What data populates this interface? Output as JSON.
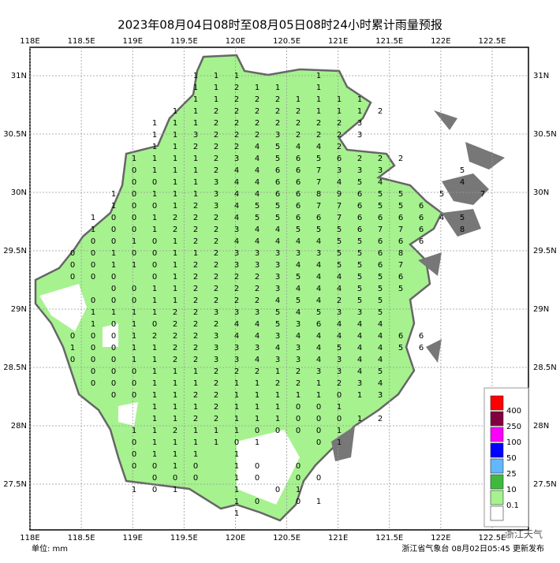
{
  "title": "2023年08月04日08时至08月05日08时24小时累计雨量预报",
  "xticks": [
    {
      "value": 118,
      "label": "118E"
    },
    {
      "value": 118.5,
      "label": "118.5E"
    },
    {
      "value": 119,
      "label": "119E"
    },
    {
      "value": 119.5,
      "label": "119.5E"
    },
    {
      "value": 120,
      "label": "120E"
    },
    {
      "value": 120.5,
      "label": "120.5E"
    },
    {
      "value": 121,
      "label": "121E"
    },
    {
      "value": 121.5,
      "label": "121.5E"
    },
    {
      "value": 122,
      "label": "122E"
    },
    {
      "value": 122.5,
      "label": "122.5E"
    }
  ],
  "yticks": [
    {
      "value": 27.5,
      "label": "27.5N"
    },
    {
      "value": 28,
      "label": "28N"
    },
    {
      "value": 28.5,
      "label": "28.5N"
    },
    {
      "value": 29,
      "label": "29N"
    },
    {
      "value": 29.5,
      "label": "29.5N"
    },
    {
      "value": 30,
      "label": "30N"
    },
    {
      "value": 30.5,
      "label": "30.5N"
    },
    {
      "value": 31,
      "label": "31N"
    }
  ],
  "grid": [
    [
      null,
      null,
      null,
      null,
      null,
      null,
      1,
      1,
      1,
      null,
      null,
      null,
      1,
      null,
      null,
      null,
      null,
      null,
      null,
      null,
      null
    ],
    [
      null,
      null,
      null,
      null,
      null,
      null,
      1,
      1,
      2,
      1,
      1,
      null,
      1,
      null,
      null,
      null,
      null,
      null,
      null,
      null,
      null
    ],
    [
      null,
      null,
      null,
      null,
      null,
      null,
      1,
      1,
      2,
      2,
      2,
      1,
      1,
      1,
      1,
      null,
      null,
      null,
      null,
      null,
      null
    ],
    [
      null,
      null,
      null,
      null,
      null,
      1,
      1,
      2,
      2,
      2,
      2,
      2,
      1,
      1,
      1,
      2,
      null,
      null,
      null,
      null,
      null
    ],
    [
      null,
      null,
      null,
      null,
      1,
      1,
      1,
      2,
      2,
      2,
      2,
      2,
      2,
      2,
      3,
      null,
      null,
      null,
      null,
      null,
      null
    ],
    [
      null,
      null,
      null,
      null,
      1,
      1,
      3,
      2,
      2,
      2,
      3,
      2,
      2,
      2,
      3,
      null,
      null,
      null,
      null,
      null,
      null
    ],
    [
      null,
      null,
      null,
      null,
      1,
      1,
      2,
      2,
      2,
      4,
      5,
      4,
      4,
      2,
      null,
      null,
      null,
      null,
      null,
      null,
      null
    ],
    [
      null,
      null,
      null,
      1,
      1,
      1,
      1,
      2,
      3,
      4,
      5,
      6,
      5,
      6,
      2,
      2,
      2,
      null,
      null,
      null,
      null
    ],
    [
      null,
      null,
      null,
      0,
      1,
      1,
      1,
      2,
      4,
      4,
      6,
      6,
      7,
      3,
      3,
      3,
      null,
      null,
      null,
      5,
      null
    ],
    [
      null,
      null,
      null,
      0,
      0,
      1,
      1,
      3,
      4,
      4,
      6,
      6,
      7,
      4,
      5,
      4,
      null,
      null,
      null,
      4,
      null
    ],
    [
      null,
      null,
      1,
      0,
      1,
      1,
      1,
      3,
      4,
      4,
      6,
      6,
      8,
      9,
      6,
      5,
      5,
      null,
      5,
      null,
      7
    ],
    [
      null,
      null,
      1,
      0,
      0,
      1,
      2,
      3,
      4,
      5,
      5,
      6,
      7,
      7,
      6,
      5,
      5,
      6,
      null,
      null,
      null
    ],
    [
      null,
      1,
      0,
      0,
      1,
      2,
      2,
      2,
      4,
      5,
      5,
      6,
      6,
      7,
      6,
      6,
      6,
      6,
      4,
      5,
      null
    ],
    [
      null,
      1,
      0,
      0,
      1,
      2,
      2,
      2,
      3,
      4,
      4,
      5,
      5,
      5,
      6,
      7,
      7,
      6,
      null,
      8,
      null
    ],
    [
      null,
      0,
      0,
      1,
      0,
      1,
      2,
      2,
      4,
      4,
      4,
      4,
      4,
      5,
      5,
      6,
      6,
      6,
      null,
      null,
      null
    ],
    [
      0,
      0,
      1,
      0,
      0,
      1,
      1,
      2,
      3,
      3,
      3,
      3,
      3,
      5,
      5,
      6,
      8,
      null,
      null,
      null,
      null
    ],
    [
      0,
      0,
      1,
      1,
      0,
      1,
      2,
      2,
      3,
      3,
      3,
      4,
      4,
      5,
      5,
      6,
      7,
      null,
      null,
      null,
      null
    ],
    [
      0,
      0,
      0,
      null,
      0,
      1,
      2,
      2,
      2,
      2,
      3,
      5,
      4,
      4,
      5,
      5,
      6,
      null,
      null,
      null,
      null
    ],
    [
      null,
      null,
      0,
      0,
      1,
      1,
      2,
      2,
      2,
      2,
      3,
      4,
      4,
      4,
      5,
      5,
      5,
      null,
      null,
      null,
      null
    ],
    [
      null,
      0,
      0,
      0,
      1,
      1,
      2,
      2,
      2,
      2,
      4,
      5,
      4,
      2,
      5,
      5,
      null,
      null,
      null,
      null,
      null
    ],
    [
      null,
      1,
      1,
      1,
      1,
      2,
      2,
      3,
      3,
      3,
      5,
      4,
      5,
      3,
      3,
      5,
      null,
      null,
      null,
      null,
      null
    ],
    [
      null,
      1,
      0,
      1,
      0,
      2,
      2,
      2,
      4,
      4,
      5,
      3,
      6,
      4,
      4,
      4,
      null,
      null,
      null,
      null,
      null
    ],
    [
      0,
      0,
      0,
      1,
      2,
      2,
      2,
      3,
      4,
      4,
      3,
      4,
      4,
      4,
      4,
      4,
      6,
      6,
      null,
      null,
      null
    ],
    [
      1,
      0,
      0,
      1,
      1,
      2,
      2,
      3,
      3,
      3,
      4,
      3,
      4,
      5,
      4,
      4,
      5,
      6,
      null,
      null,
      null
    ],
    [
      0,
      0,
      0,
      1,
      1,
      2,
      2,
      3,
      3,
      4,
      3,
      3,
      4,
      3,
      4,
      4,
      null,
      null,
      null,
      null,
      null
    ],
    [
      null,
      0,
      0,
      0,
      1,
      1,
      1,
      2,
      2,
      2,
      1,
      2,
      3,
      3,
      4,
      5,
      null,
      null,
      null,
      null,
      null
    ],
    [
      null,
      0,
      0,
      0,
      1,
      1,
      1,
      2,
      1,
      1,
      2,
      2,
      1,
      2,
      3,
      4,
      null,
      null,
      null,
      null,
      null
    ],
    [
      null,
      null,
      0,
      0,
      1,
      1,
      2,
      2,
      1,
      1,
      1,
      1,
      1,
      0,
      1,
      3,
      null,
      null,
      null,
      null,
      null
    ],
    [
      null,
      null,
      null,
      null,
      1,
      1,
      1,
      2,
      1,
      1,
      1,
      0,
      0,
      1,
      null,
      null,
      null,
      null,
      null,
      null,
      null
    ],
    [
      null,
      null,
      null,
      null,
      1,
      1,
      2,
      2,
      1,
      1,
      1,
      0,
      0,
      0,
      1,
      2,
      null,
      null,
      null,
      null,
      null
    ],
    [
      null,
      null,
      null,
      1,
      1,
      2,
      1,
      1,
      1,
      0,
      0,
      0,
      0,
      1,
      null,
      null,
      null,
      null,
      null,
      null,
      null
    ],
    [
      null,
      null,
      null,
      0,
      1,
      1,
      1,
      1,
      0,
      1,
      null,
      null,
      0,
      1,
      null,
      null,
      null,
      null,
      null,
      null,
      null
    ],
    [
      null,
      null,
      null,
      0,
      1,
      1,
      1,
      null,
      1,
      null,
      null,
      null,
      null,
      null,
      null,
      null,
      null,
      null,
      null,
      null,
      null
    ],
    [
      null,
      null,
      null,
      0,
      0,
      1,
      0,
      null,
      1,
      0,
      null,
      0,
      null,
      null,
      null,
      null,
      null,
      null,
      null,
      null,
      null
    ],
    [
      null,
      null,
      null,
      null,
      0,
      0,
      0,
      null,
      1,
      0,
      null,
      0,
      0,
      null,
      null,
      null,
      null,
      null,
      null,
      null,
      null
    ],
    [
      null,
      null,
      null,
      1,
      0,
      1,
      null,
      null,
      1,
      null,
      0,
      1,
      null,
      null,
      null,
      null,
      null,
      null,
      null,
      null,
      null
    ],
    [
      null,
      null,
      null,
      null,
      null,
      null,
      null,
      null,
      1,
      0,
      null,
      0,
      1,
      null,
      null,
      null,
      null,
      null,
      null,
      null,
      null
    ],
    [
      null,
      null,
      null,
      null,
      null,
      null,
      null,
      null,
      1,
      null,
      null,
      null,
      null,
      null,
      null,
      null,
      null,
      null,
      null,
      null,
      null
    ]
  ],
  "legend": {
    "colors": [
      "#ffffff",
      "#a6f28f",
      "#3dba3d",
      "#61b8ff",
      "#0000fe",
      "#fa00fa",
      "#800040",
      "#ff0000"
    ],
    "labels": [
      0.1,
      10,
      25,
      50,
      100,
      250,
      400
    ]
  },
  "footer": {
    "unit": "单位: mm",
    "issuer": "浙江省气象台 08月02日05:45 更新发布"
  },
  "watermark": "浙江天气"
}
